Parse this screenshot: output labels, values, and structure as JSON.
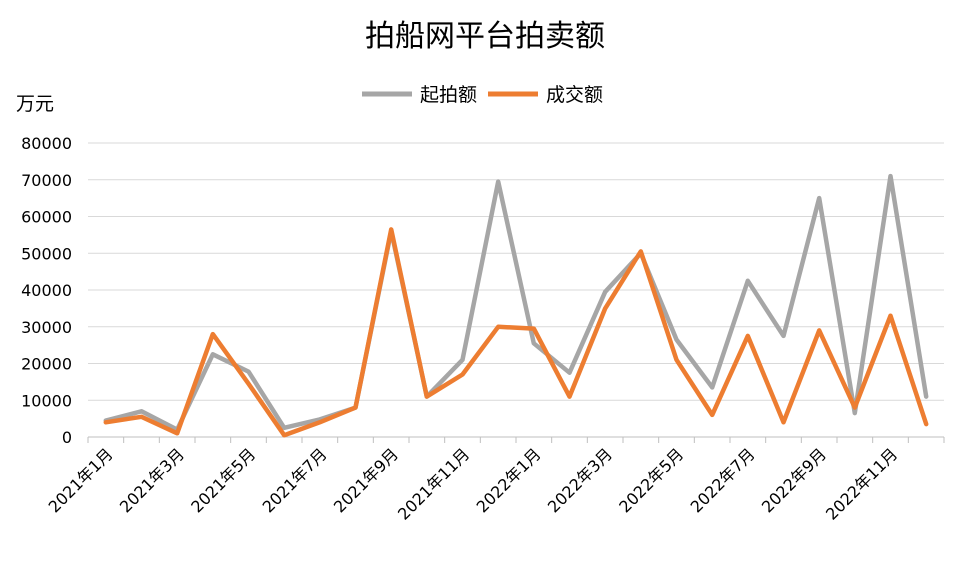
{
  "chart_data": {
    "type": "line",
    "title": "拍船网平台拍卖额",
    "ylabel": "万元",
    "xlabel": "",
    "ylim": [
      0,
      80000
    ],
    "yticks": [
      0,
      10000,
      20000,
      30000,
      40000,
      50000,
      60000,
      70000,
      80000
    ],
    "legend_position": "top-center",
    "grid": true,
    "categories": [
      "2021年1月",
      "2021年2月",
      "2021年3月",
      "2021年4月",
      "2021年5月",
      "2021年6月",
      "2021年7月",
      "2021年8月",
      "2021年9月",
      "2021年10月",
      "2021年11月",
      "2021年12月",
      "2022年1月",
      "2022年2月",
      "2022年3月",
      "2022年4月",
      "2022年5月",
      "2022年6月",
      "2022年7月",
      "2022年8月",
      "2022年9月",
      "2022年10月",
      "2022年11月",
      "2022年12月"
    ],
    "x_tick_labels": [
      "2021年1月",
      "2021年3月",
      "2021年5月",
      "2021年7月",
      "2021年9月",
      "2021年11月",
      "2022年1月",
      "2022年3月",
      "2022年5月",
      "2022年7月",
      "2022年9月",
      "2022年11月"
    ],
    "series": [
      {
        "name": "起拍额",
        "color": "#a6a6a6",
        "values": [
          4500,
          7000,
          2000,
          22500,
          17800,
          2500,
          4800,
          8000,
          56000,
          11000,
          21000,
          69500,
          25500,
          17500,
          39500,
          50000,
          26500,
          13500,
          42500,
          27500,
          65000,
          6500,
          71000,
          11000
        ]
      },
      {
        "name": "成交额",
        "color": "#ed7d31",
        "values": [
          4000,
          5500,
          1000,
          28000,
          14500,
          500,
          4000,
          8000,
          56500,
          11000,
          17000,
          30000,
          29500,
          11000,
          35000,
          50500,
          21000,
          6000,
          27500,
          4000,
          29000,
          8000,
          33000,
          3500
        ]
      }
    ]
  }
}
